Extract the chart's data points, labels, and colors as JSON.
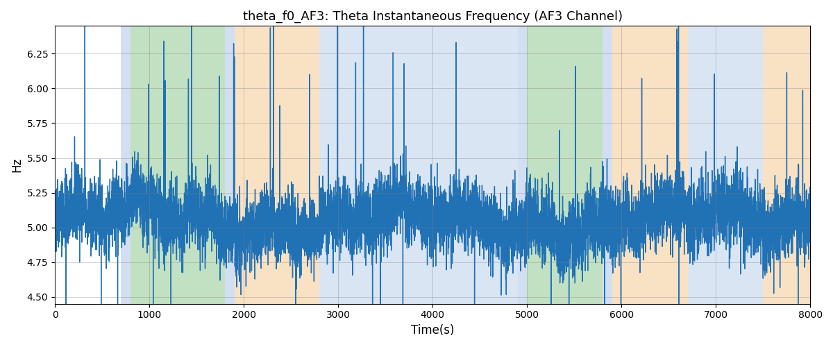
{
  "title": "theta_f0_AF3: Theta Instantaneous Frequency (AF3 Channel)",
  "xlabel": "Time(s)",
  "ylabel": "Hz",
  "xlim": [
    0,
    8000
  ],
  "ylim": [
    4.45,
    6.45
  ],
  "yticks": [
    4.5,
    4.75,
    5.0,
    5.25,
    5.5,
    5.75,
    6.0,
    6.25
  ],
  "xticks": [
    0,
    1000,
    2000,
    3000,
    4000,
    5000,
    6000,
    7000,
    8000
  ],
  "line_color": "#2171b5",
  "line_width": 1.0,
  "background_color": "#ffffff",
  "regions": [
    {
      "start": 700,
      "end": 800,
      "color": "#aec6e8",
      "alpha": 0.55
    },
    {
      "start": 800,
      "end": 1800,
      "color": "#90c990",
      "alpha": 0.55
    },
    {
      "start": 1800,
      "end": 1900,
      "color": "#aec6e8",
      "alpha": 0.55
    },
    {
      "start": 1900,
      "end": 2800,
      "color": "#f5c992",
      "alpha": 0.55
    },
    {
      "start": 2800,
      "end": 4900,
      "color": "#aec6e8",
      "alpha": 0.45
    },
    {
      "start": 4900,
      "end": 5000,
      "color": "#aec6e8",
      "alpha": 0.55
    },
    {
      "start": 5000,
      "end": 5800,
      "color": "#90c990",
      "alpha": 0.55
    },
    {
      "start": 5800,
      "end": 5900,
      "color": "#aec6e8",
      "alpha": 0.55
    },
    {
      "start": 5900,
      "end": 6700,
      "color": "#f5c992",
      "alpha": 0.55
    },
    {
      "start": 6700,
      "end": 7500,
      "color": "#aec6e8",
      "alpha": 0.45
    },
    {
      "start": 7500,
      "end": 8000,
      "color": "#f5c992",
      "alpha": 0.55
    }
  ],
  "seed": 42,
  "n_points": 8000,
  "base_freq": 5.05,
  "noise_std": 0.13,
  "spike_prob": 0.005,
  "spike_magnitude": 1.0,
  "figsize": [
    12.0,
    5.0
  ],
  "dpi": 100
}
